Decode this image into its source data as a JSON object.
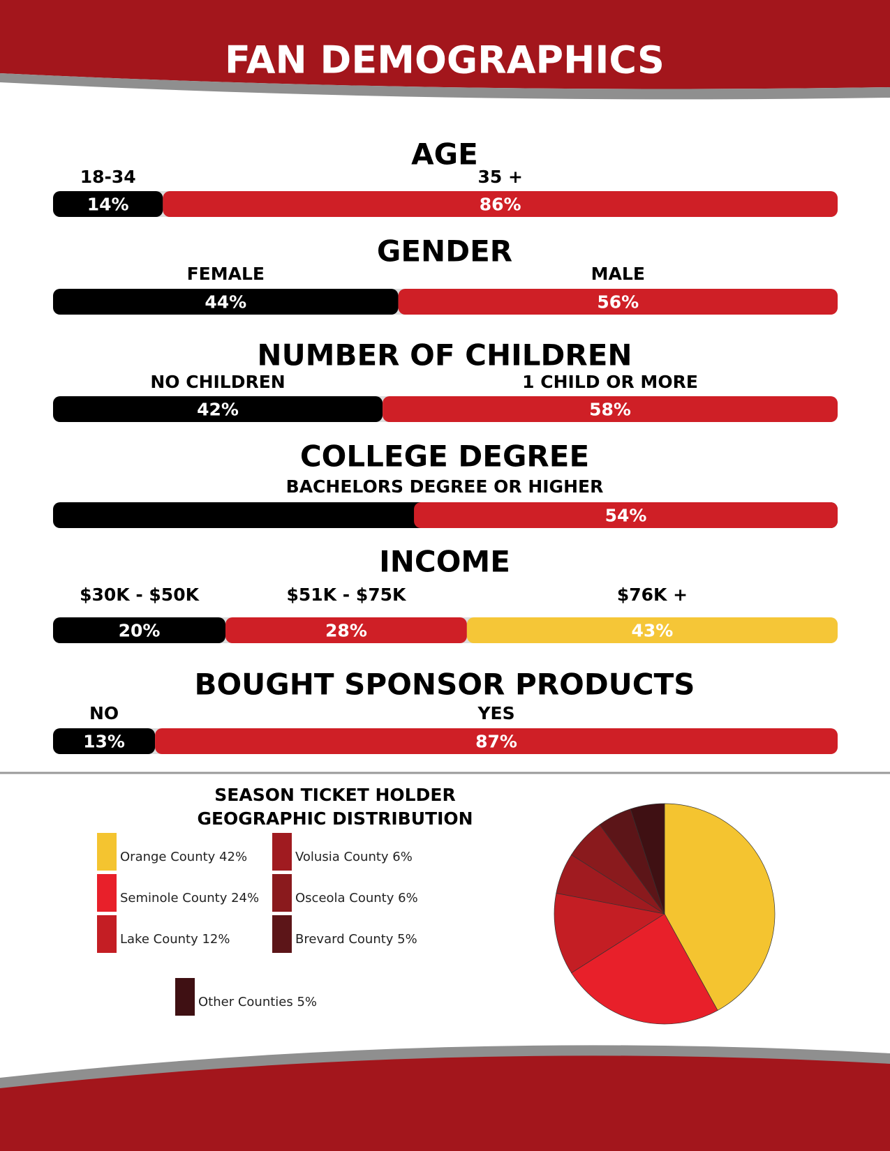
{
  "title": "FAN DEMOGRAPHICS",
  "chart_data": [
    {
      "type": "stacked_bar",
      "title": "AGE",
      "categories": [
        "18-34",
        "35 +"
      ],
      "values": [
        14,
        86
      ],
      "value_labels": [
        "14%",
        "86%"
      ],
      "colors": [
        "#000000",
        "#cf1f26"
      ]
    },
    {
      "type": "stacked_bar",
      "title": "GENDER",
      "categories": [
        "FEMALE",
        "MALE"
      ],
      "values": [
        44,
        56
      ],
      "value_labels": [
        "44%",
        "56%"
      ],
      "colors": [
        "#000000",
        "#cf1f26"
      ]
    },
    {
      "type": "stacked_bar",
      "title": "NUMBER OF CHILDREN",
      "categories": [
        "NO CHILDREN",
        "1 CHILD OR MORE"
      ],
      "values": [
        42,
        58
      ],
      "value_labels": [
        "42%",
        "58%"
      ],
      "colors": [
        "#000000",
        "#cf1f26"
      ]
    },
    {
      "type": "share_bar",
      "title": "COLLEGE DEGREE",
      "subtitle": "BACHELORS DEGREE OR HIGHER",
      "values": [
        54
      ],
      "value_labels": [
        "54%"
      ],
      "colors": [
        "#cf1f26"
      ],
      "background": "#000000"
    },
    {
      "type": "stacked_bar",
      "title": "INCOME",
      "categories": [
        "$30K - $50K",
        "$51K - $75K",
        "$76K +"
      ],
      "values": [
        20,
        28,
        43
      ],
      "value_labels": [
        "20%",
        "28%",
        "43%"
      ],
      "colors": [
        "#000000",
        "#cf1f26",
        "#f5c637"
      ]
    },
    {
      "type": "stacked_bar",
      "title": "BOUGHT SPONSOR PRODUCTS",
      "categories": [
        "NO",
        "YES"
      ],
      "values": [
        13,
        87
      ],
      "value_labels": [
        "13%",
        "87%"
      ],
      "colors": [
        "#000000",
        "#cf1f26"
      ]
    },
    {
      "type": "pie",
      "title": [
        "SEASON TICKET HOLDER",
        "GEOGRAPHIC DISTRIBUTION"
      ],
      "categories": [
        "Orange County 42%",
        "Seminole County 24%",
        "Lake County 12%",
        "Volusia County 6%",
        "Osceola County 6%",
        "Brevard County 5%",
        "Other Counties 5%"
      ],
      "values": [
        42,
        24,
        12,
        6,
        6,
        5,
        5
      ],
      "colors": [
        "#f4c430",
        "#e8202a",
        "#c41e24",
        "#a01b20",
        "#8a1a1d",
        "#5c1518",
        "#3f1013"
      ]
    }
  ]
}
